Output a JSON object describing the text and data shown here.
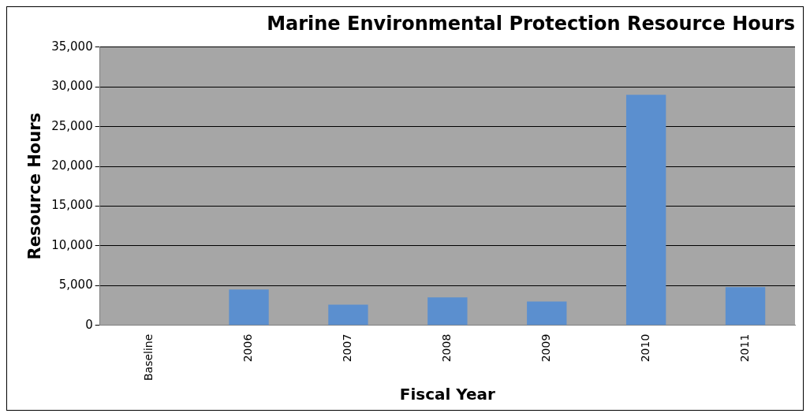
{
  "chart_data": {
    "type": "bar",
    "title": "Marine Environmental Protection Resource Hours",
    "xlabel": "Fiscal Year",
    "ylabel": "Resource Hours",
    "categories": [
      "Baseline",
      "2006",
      "2007",
      "2008",
      "2009",
      "2010",
      "2011"
    ],
    "values": [
      0,
      4500,
      2600,
      3500,
      3000,
      29000,
      4800
    ],
    "color": "#5b8fcf",
    "ylim": [
      0,
      35000
    ],
    "yticks": [
      0,
      {
        "value": 5000,
        "label": "5,000"
      },
      {
        "value": 10000,
        "label": "10,000"
      },
      {
        "value": 15000,
        "label": "15,000"
      },
      {
        "value": 20000,
        "label": "20,000"
      },
      {
        "value": 25000,
        "label": "25,000"
      },
      {
        "value": 30000,
        "label": "30,000"
      },
      {
        "value": 35000,
        "label": "35,000"
      }
    ],
    "grid": "y",
    "legend": false
  }
}
